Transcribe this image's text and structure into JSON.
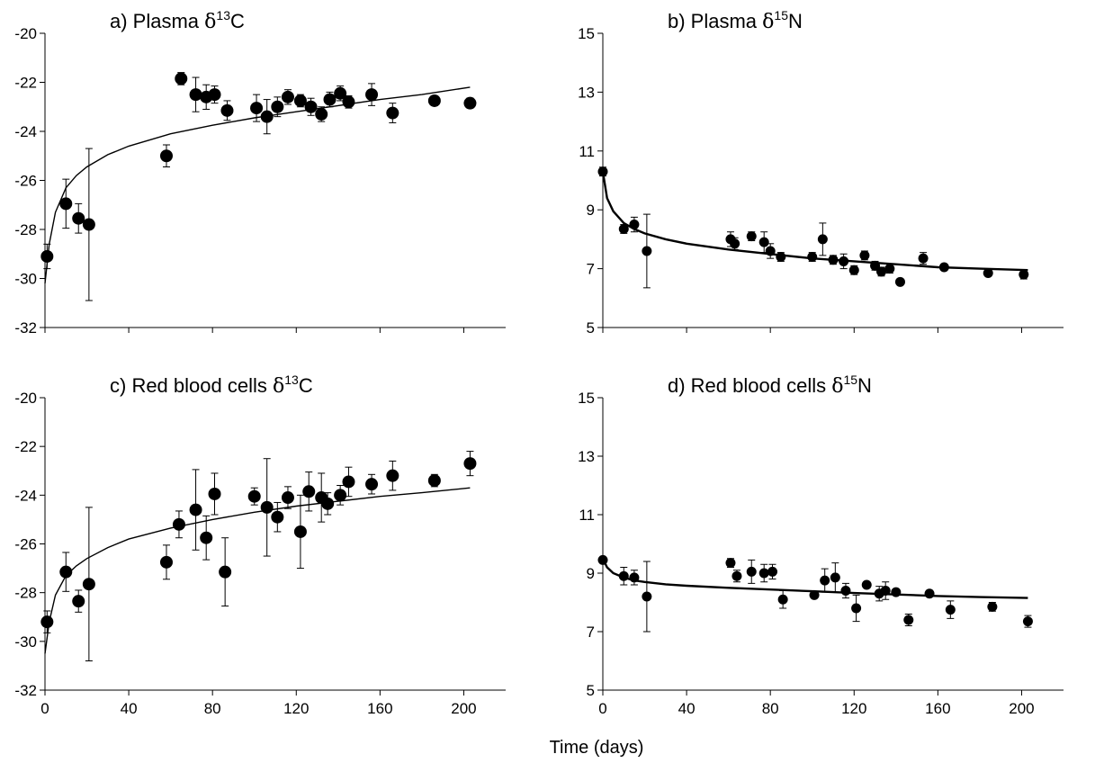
{
  "figure": {
    "xlabel": "Time (days)"
  },
  "chart_data": [
    {
      "type": "scatter",
      "panel_id": "a",
      "title": {
        "letter": "a)",
        "tissue": "Plasma",
        "delta": "δ",
        "mass": "13",
        "element": "C"
      },
      "xlim": [
        0,
        220
      ],
      "ylim": [
        -32,
        -20
      ],
      "xticks": [
        0,
        40,
        80,
        120,
        160,
        200
      ],
      "yticks": [
        -32,
        -30,
        -28,
        -26,
        -24,
        -22,
        -20
      ],
      "x_tick_labels_shown": false,
      "grid": false,
      "points": [
        {
          "x": 1,
          "y": -29.1,
          "err": 0.5
        },
        {
          "x": 10,
          "y": -26.95,
          "err": 1.0
        },
        {
          "x": 16,
          "y": -27.55,
          "err": 0.6
        },
        {
          "x": 21,
          "y": -27.8,
          "err": 3.1
        },
        {
          "x": 58,
          "y": -25.0,
          "err": 0.45
        },
        {
          "x": 65,
          "y": -21.85,
          "err": 0.25
        },
        {
          "x": 72,
          "y": -22.5,
          "err": 0.7
        },
        {
          "x": 77,
          "y": -22.6,
          "err": 0.5
        },
        {
          "x": 81,
          "y": -22.5,
          "err": 0.35
        },
        {
          "x": 87,
          "y": -23.15,
          "err": 0.4
        },
        {
          "x": 101,
          "y": -23.05,
          "err": 0.55
        },
        {
          "x": 106,
          "y": -23.4,
          "err": 0.7
        },
        {
          "x": 111,
          "y": -23.0,
          "err": 0.4
        },
        {
          "x": 116,
          "y": -22.6,
          "err": 0.3
        },
        {
          "x": 122,
          "y": -22.75,
          "err": 0.25
        },
        {
          "x": 127,
          "y": -23.0,
          "err": 0.35
        },
        {
          "x": 132,
          "y": -23.3,
          "err": 0.3
        },
        {
          "x": 136,
          "y": -22.7,
          "err": 0.3
        },
        {
          "x": 141,
          "y": -22.45,
          "err": 0.3
        },
        {
          "x": 145,
          "y": -22.8,
          "err": 0.25
        },
        {
          "x": 156,
          "y": -22.5,
          "err": 0.45
        },
        {
          "x": 166,
          "y": -23.25,
          "err": 0.4
        },
        {
          "x": 186,
          "y": -22.75,
          "err": 0.2
        },
        {
          "x": 203,
          "y": -22.85,
          "err": 0.2
        }
      ],
      "fit_curve": {
        "x": [
          0,
          2,
          5,
          10,
          15,
          20,
          30,
          40,
          60,
          80,
          100,
          120,
          140,
          160,
          180,
          203
        ],
        "y": [
          -30.2,
          -28.6,
          -27.3,
          -26.3,
          -25.8,
          -25.45,
          -24.95,
          -24.6,
          -24.1,
          -23.75,
          -23.45,
          -23.2,
          -22.95,
          -22.7,
          -22.5,
          -22.2
        ]
      }
    },
    {
      "type": "scatter",
      "panel_id": "b",
      "title": {
        "letter": "b)",
        "tissue": "Plasma",
        "delta": "δ",
        "mass": "15",
        "element": "N"
      },
      "xlim": [
        0,
        220
      ],
      "ylim": [
        5,
        15
      ],
      "xticks": [
        0,
        40,
        80,
        120,
        160,
        200
      ],
      "yticks": [
        5,
        7,
        9,
        11,
        13,
        15
      ],
      "x_tick_labels_shown": false,
      "grid": false,
      "points": [
        {
          "x": 0,
          "y": 10.3,
          "err": 0.15
        },
        {
          "x": 10,
          "y": 8.35,
          "err": 0.15
        },
        {
          "x": 15,
          "y": 8.5,
          "err": 0.25
        },
        {
          "x": 21,
          "y": 7.6,
          "err": 1.25
        },
        {
          "x": 61,
          "y": 8.0,
          "err": 0.25
        },
        {
          "x": 63,
          "y": 7.85,
          "err": 0.2
        },
        {
          "x": 71,
          "y": 8.1,
          "err": 0.15
        },
        {
          "x": 77,
          "y": 7.9,
          "err": 0.35
        },
        {
          "x": 80,
          "y": 7.6,
          "err": 0.25
        },
        {
          "x": 85,
          "y": 7.4,
          "err": 0.15
        },
        {
          "x": 100,
          "y": 7.4,
          "err": 0.15
        },
        {
          "x": 105,
          "y": 8.0,
          "err": 0.55
        },
        {
          "x": 110,
          "y": 7.3,
          "err": 0.15
        },
        {
          "x": 115,
          "y": 7.25,
          "err": 0.25
        },
        {
          "x": 120,
          "y": 6.95,
          "err": 0.15
        },
        {
          "x": 125,
          "y": 7.45,
          "err": 0.15
        },
        {
          "x": 130,
          "y": 7.1,
          "err": 0.15
        },
        {
          "x": 133,
          "y": 6.9,
          "err": 0.15
        },
        {
          "x": 137,
          "y": 7.0,
          "err": 0.15
        },
        {
          "x": 142,
          "y": 6.55,
          "err": 0.1
        },
        {
          "x": 153,
          "y": 7.35,
          "err": 0.2
        },
        {
          "x": 163,
          "y": 7.05,
          "err": 0.1
        },
        {
          "x": 184,
          "y": 6.85,
          "err": 0.1
        },
        {
          "x": 201,
          "y": 6.8,
          "err": 0.15
        }
      ],
      "fit_curve": {
        "x": [
          0,
          2,
          5,
          10,
          15,
          20,
          30,
          40,
          60,
          80,
          100,
          120,
          140,
          160,
          180,
          203
        ],
        "y": [
          10.3,
          9.4,
          8.95,
          8.55,
          8.35,
          8.2,
          8.0,
          7.85,
          7.65,
          7.5,
          7.35,
          7.25,
          7.15,
          7.05,
          7.0,
          6.95
        ]
      }
    },
    {
      "type": "scatter",
      "panel_id": "c",
      "title": {
        "letter": "c)",
        "tissue": "Red blood cells",
        "delta": "δ",
        "mass": "13",
        "element": "C"
      },
      "xlim": [
        0,
        220
      ],
      "ylim": [
        -32,
        -20
      ],
      "xticks": [
        0,
        40,
        80,
        120,
        160,
        200
      ],
      "yticks": [
        -32,
        -30,
        -28,
        -26,
        -24,
        -22,
        -20
      ],
      "x_tick_labels_shown": true,
      "grid": false,
      "points": [
        {
          "x": 1,
          "y": -29.2,
          "err": 0.45
        },
        {
          "x": 10,
          "y": -27.15,
          "err": 0.8
        },
        {
          "x": 16,
          "y": -28.35,
          "err": 0.45
        },
        {
          "x": 21,
          "y": -27.65,
          "err": 3.15
        },
        {
          "x": 58,
          "y": -26.75,
          "err": 0.7
        },
        {
          "x": 64,
          "y": -25.2,
          "err": 0.55
        },
        {
          "x": 72,
          "y": -24.6,
          "err": 1.65
        },
        {
          "x": 77,
          "y": -25.75,
          "err": 0.9
        },
        {
          "x": 81,
          "y": -23.95,
          "err": 0.85
        },
        {
          "x": 86,
          "y": -27.15,
          "err": 1.4
        },
        {
          "x": 100,
          "y": -24.05,
          "err": 0.35
        },
        {
          "x": 106,
          "y": -24.5,
          "err": 2.0
        },
        {
          "x": 111,
          "y": -24.9,
          "err": 0.6
        },
        {
          "x": 116,
          "y": -24.1,
          "err": 0.45
        },
        {
          "x": 122,
          "y": -25.5,
          "err": 1.5
        },
        {
          "x": 126,
          "y": -23.85,
          "err": 0.8
        },
        {
          "x": 132,
          "y": -24.1,
          "err": 1.0
        },
        {
          "x": 135,
          "y": -24.35,
          "err": 0.45
        },
        {
          "x": 141,
          "y": -24.0,
          "err": 0.4
        },
        {
          "x": 145,
          "y": -23.45,
          "err": 0.6
        },
        {
          "x": 156,
          "y": -23.55,
          "err": 0.4
        },
        {
          "x": 166,
          "y": -23.2,
          "err": 0.6
        },
        {
          "x": 186,
          "y": -23.4,
          "err": 0.25
        },
        {
          "x": 203,
          "y": -22.7,
          "err": 0.5
        }
      ],
      "fit_curve": {
        "x": [
          0,
          2,
          5,
          10,
          15,
          20,
          30,
          40,
          60,
          80,
          100,
          120,
          140,
          160,
          180,
          203
        ],
        "y": [
          -30.5,
          -29.2,
          -28.1,
          -27.3,
          -26.9,
          -26.6,
          -26.15,
          -25.8,
          -25.35,
          -25.0,
          -24.7,
          -24.45,
          -24.25,
          -24.05,
          -23.9,
          -23.7
        ]
      }
    },
    {
      "type": "scatter",
      "panel_id": "d",
      "title": {
        "letter": "d)",
        "tissue": "Red blood cells",
        "delta": "δ",
        "mass": "15",
        "element": "N"
      },
      "xlim": [
        0,
        220
      ],
      "ylim": [
        5,
        15
      ],
      "xticks": [
        0,
        40,
        80,
        120,
        160,
        200
      ],
      "yticks": [
        5,
        7,
        9,
        11,
        13,
        15
      ],
      "x_tick_labels_shown": true,
      "grid": false,
      "points": [
        {
          "x": 0,
          "y": 9.45,
          "err": 0.1
        },
        {
          "x": 10,
          "y": 8.9,
          "err": 0.3
        },
        {
          "x": 15,
          "y": 8.85,
          "err": 0.25
        },
        {
          "x": 21,
          "y": 8.2,
          "err": 1.2
        },
        {
          "x": 61,
          "y": 9.35,
          "err": 0.15
        },
        {
          "x": 64,
          "y": 8.9,
          "err": 0.2
        },
        {
          "x": 71,
          "y": 9.05,
          "err": 0.4
        },
        {
          "x": 77,
          "y": 9.0,
          "err": 0.3
        },
        {
          "x": 81,
          "y": 9.05,
          "err": 0.25
        },
        {
          "x": 86,
          "y": 8.1,
          "err": 0.3
        },
        {
          "x": 101,
          "y": 8.25,
          "err": 0.1
        },
        {
          "x": 106,
          "y": 8.75,
          "err": 0.4
        },
        {
          "x": 111,
          "y": 8.85,
          "err": 0.5
        },
        {
          "x": 116,
          "y": 8.4,
          "err": 0.25
        },
        {
          "x": 121,
          "y": 7.8,
          "err": 0.45
        },
        {
          "x": 126,
          "y": 8.6,
          "err": 0.1
        },
        {
          "x": 132,
          "y": 8.3,
          "err": 0.25
        },
        {
          "x": 135,
          "y": 8.4,
          "err": 0.3
        },
        {
          "x": 140,
          "y": 8.35,
          "err": 0.1
        },
        {
          "x": 146,
          "y": 7.4,
          "err": 0.2
        },
        {
          "x": 156,
          "y": 8.3,
          "err": 0.1
        },
        {
          "x": 166,
          "y": 7.75,
          "err": 0.3
        },
        {
          "x": 186,
          "y": 7.85,
          "err": 0.15
        },
        {
          "x": 203,
          "y": 7.35,
          "err": 0.2
        }
      ],
      "fit_curve": {
        "x": [
          0,
          2,
          5,
          10,
          15,
          20,
          30,
          40,
          60,
          80,
          100,
          120,
          140,
          160,
          180,
          203
        ],
        "y": [
          9.5,
          9.2,
          9.0,
          8.85,
          8.75,
          8.7,
          8.62,
          8.57,
          8.5,
          8.44,
          8.38,
          8.32,
          8.27,
          8.22,
          8.18,
          8.15
        ]
      }
    }
  ]
}
